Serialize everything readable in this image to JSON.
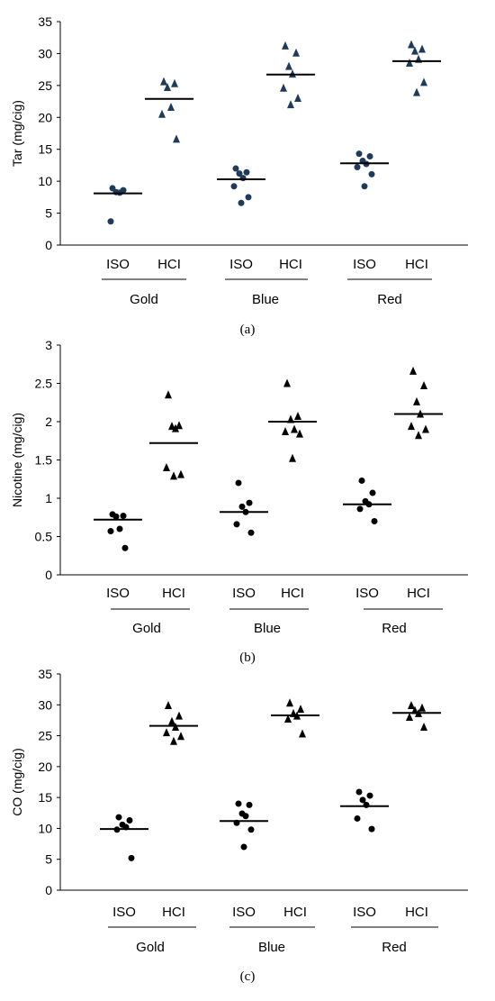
{
  "chart_data": [
    {
      "type": "scatter",
      "panel_label": "(a)",
      "ylabel": "Tar (mg/cig)",
      "ylim": [
        0,
        35
      ],
      "yticks": [
        "0",
        "5",
        "10",
        "15",
        "20",
        "25",
        "30",
        "35"
      ],
      "tick_values": [
        0,
        5,
        10,
        15,
        20,
        25,
        30,
        35
      ],
      "groups": [
        "Gold",
        "Blue",
        "Red"
      ],
      "subgroups": [
        "ISO",
        "HCI"
      ],
      "marker_color": "#1f3b5c",
      "series": [
        {
          "group": "Gold",
          "subgroup": "ISO",
          "marker": "circle",
          "mean": 8.1,
          "values": [
            8.9,
            8.6,
            8.3,
            8.2,
            3.7
          ]
        },
        {
          "group": "Gold",
          "subgroup": "HCI",
          "marker": "triangle",
          "mean": 22.9,
          "values": [
            25.6,
            25.3,
            24.7,
            21.6,
            20.5,
            16.6
          ]
        },
        {
          "group": "Blue",
          "subgroup": "ISO",
          "marker": "circle",
          "mean": 10.3,
          "values": [
            12.0,
            11.4,
            11.2,
            10.5,
            9.2,
            7.5,
            6.6
          ]
        },
        {
          "group": "Blue",
          "subgroup": "HCI",
          "marker": "triangle",
          "mean": 26.7,
          "values": [
            31.2,
            30.1,
            28.0,
            26.8,
            24.6,
            23.0,
            22.0
          ]
        },
        {
          "group": "Red",
          "subgroup": "ISO",
          "marker": "circle",
          "mean": 12.8,
          "values": [
            14.3,
            13.9,
            13.2,
            12.7,
            12.2,
            11.1,
            9.2
          ]
        },
        {
          "group": "Red",
          "subgroup": "HCI",
          "marker": "triangle",
          "mean": 28.8,
          "values": [
            31.4,
            30.7,
            30.4,
            29.1,
            28.5,
            25.5,
            23.9
          ]
        }
      ]
    },
    {
      "type": "scatter",
      "panel_label": "(b)",
      "ylabel": "Nicotine (mg/cig)",
      "ylim": [
        0,
        3
      ],
      "yticks": [
        "0",
        "0.5",
        "1",
        "1.5",
        "2",
        "2.5",
        "3"
      ],
      "tick_values": [
        0,
        0.5,
        1,
        1.5,
        2,
        2.5,
        3
      ],
      "groups": [
        "Gold",
        "Blue",
        "Red"
      ],
      "subgroups": [
        "ISO",
        "HCI"
      ],
      "marker_color": "#000000",
      "series": [
        {
          "group": "Gold",
          "subgroup": "ISO",
          "marker": "circle",
          "mean": 0.72,
          "values": [
            0.79,
            0.77,
            0.76,
            0.6,
            0.57,
            0.35
          ]
        },
        {
          "group": "Gold",
          "subgroup": "HCI",
          "marker": "triangle",
          "mean": 1.72,
          "values": [
            2.35,
            1.95,
            1.94,
            1.91,
            1.4,
            1.31,
            1.29
          ]
        },
        {
          "group": "Blue",
          "subgroup": "ISO",
          "marker": "circle",
          "mean": 0.82,
          "values": [
            1.2,
            0.94,
            0.89,
            0.82,
            0.66,
            0.55
          ]
        },
        {
          "group": "Blue",
          "subgroup": "HCI",
          "marker": "triangle",
          "mean": 2.0,
          "values": [
            2.5,
            2.07,
            2.03,
            1.9,
            1.87,
            1.84,
            1.52
          ]
        },
        {
          "group": "Red",
          "subgroup": "ISO",
          "marker": "circle",
          "mean": 0.92,
          "values": [
            1.23,
            1.07,
            0.96,
            0.92,
            0.86,
            0.7
          ]
        },
        {
          "group": "Red",
          "subgroup": "HCI",
          "marker": "triangle",
          "mean": 2.1,
          "values": [
            2.66,
            2.47,
            2.26,
            2.1,
            1.94,
            1.9,
            1.82
          ]
        }
      ]
    },
    {
      "type": "scatter",
      "panel_label": "(c)",
      "ylabel": "CO (mg/cig)",
      "ylim": [
        0,
        35
      ],
      "yticks": [
        "0",
        "5",
        "10",
        "15",
        "20",
        "25",
        "30",
        "35"
      ],
      "tick_values": [
        0,
        5,
        10,
        15,
        20,
        25,
        30,
        35
      ],
      "groups": [
        "Gold",
        "Blue",
        "Red"
      ],
      "subgroups": [
        "ISO",
        "HCI"
      ],
      "marker_color": "#000000",
      "series": [
        {
          "group": "Gold",
          "subgroup": "ISO",
          "marker": "circle",
          "mean": 9.9,
          "values": [
            11.8,
            11.3,
            10.6,
            10.2,
            9.8,
            5.2
          ]
        },
        {
          "group": "Gold",
          "subgroup": "HCI",
          "marker": "triangle",
          "mean": 26.6,
          "values": [
            29.9,
            28.2,
            27.3,
            26.4,
            25.5,
            24.9,
            24.1
          ]
        },
        {
          "group": "Blue",
          "subgroup": "ISO",
          "marker": "circle",
          "mean": 11.2,
          "values": [
            14.0,
            13.8,
            12.4,
            12.0,
            10.9,
            9.8,
            7.0
          ]
        },
        {
          "group": "Blue",
          "subgroup": "HCI",
          "marker": "triangle",
          "mean": 28.3,
          "values": [
            30.3,
            29.3,
            28.6,
            28.2,
            27.7,
            25.3
          ]
        },
        {
          "group": "Red",
          "subgroup": "ISO",
          "marker": "circle",
          "mean": 13.6,
          "values": [
            15.9,
            15.3,
            14.6,
            13.8,
            11.6,
            9.9
          ]
        },
        {
          "group": "Red",
          "subgroup": "HCI",
          "marker": "triangle",
          "mean": 28.7,
          "values": [
            29.9,
            29.5,
            29.1,
            28.6,
            28.0,
            26.4
          ]
        }
      ]
    }
  ]
}
